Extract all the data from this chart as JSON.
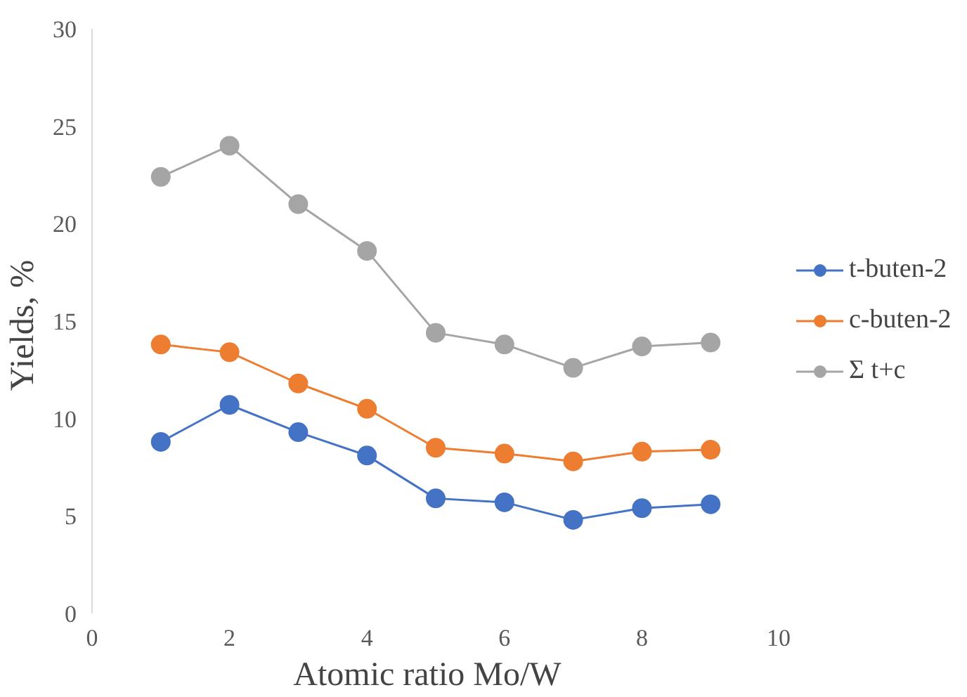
{
  "chart_data": {
    "type": "line",
    "xlabel": "Atomic  ratio  Mo/W",
    "ylabel": "Yields,  %",
    "x": [
      1,
      2,
      3,
      4,
      5,
      6,
      7,
      8,
      9
    ],
    "xlim": [
      0,
      10
    ],
    "xticks": [
      0,
      2,
      4,
      6,
      8,
      10
    ],
    "ylim": [
      0,
      30
    ],
    "yticks": [
      0,
      5,
      10,
      15,
      20,
      25,
      30
    ],
    "grid": false,
    "legend": "right",
    "marker": "circle",
    "line_style": "solid",
    "series": [
      {
        "name": "t-buten-2",
        "color": "#4472c4",
        "values": [
          8.8,
          10.7,
          9.3,
          8.1,
          5.9,
          5.7,
          4.8,
          5.4,
          5.6
        ]
      },
      {
        "name": "c-buten-2",
        "color": "#ed7d31",
        "values": [
          13.8,
          13.4,
          11.8,
          10.5,
          8.5,
          8.2,
          7.8,
          8.3,
          8.4
        ]
      },
      {
        "name": "Σ t+c",
        "color": "#a5a5a5",
        "values": [
          22.4,
          24.0,
          21.0,
          18.6,
          14.4,
          13.8,
          12.6,
          13.7,
          13.9
        ]
      }
    ]
  }
}
